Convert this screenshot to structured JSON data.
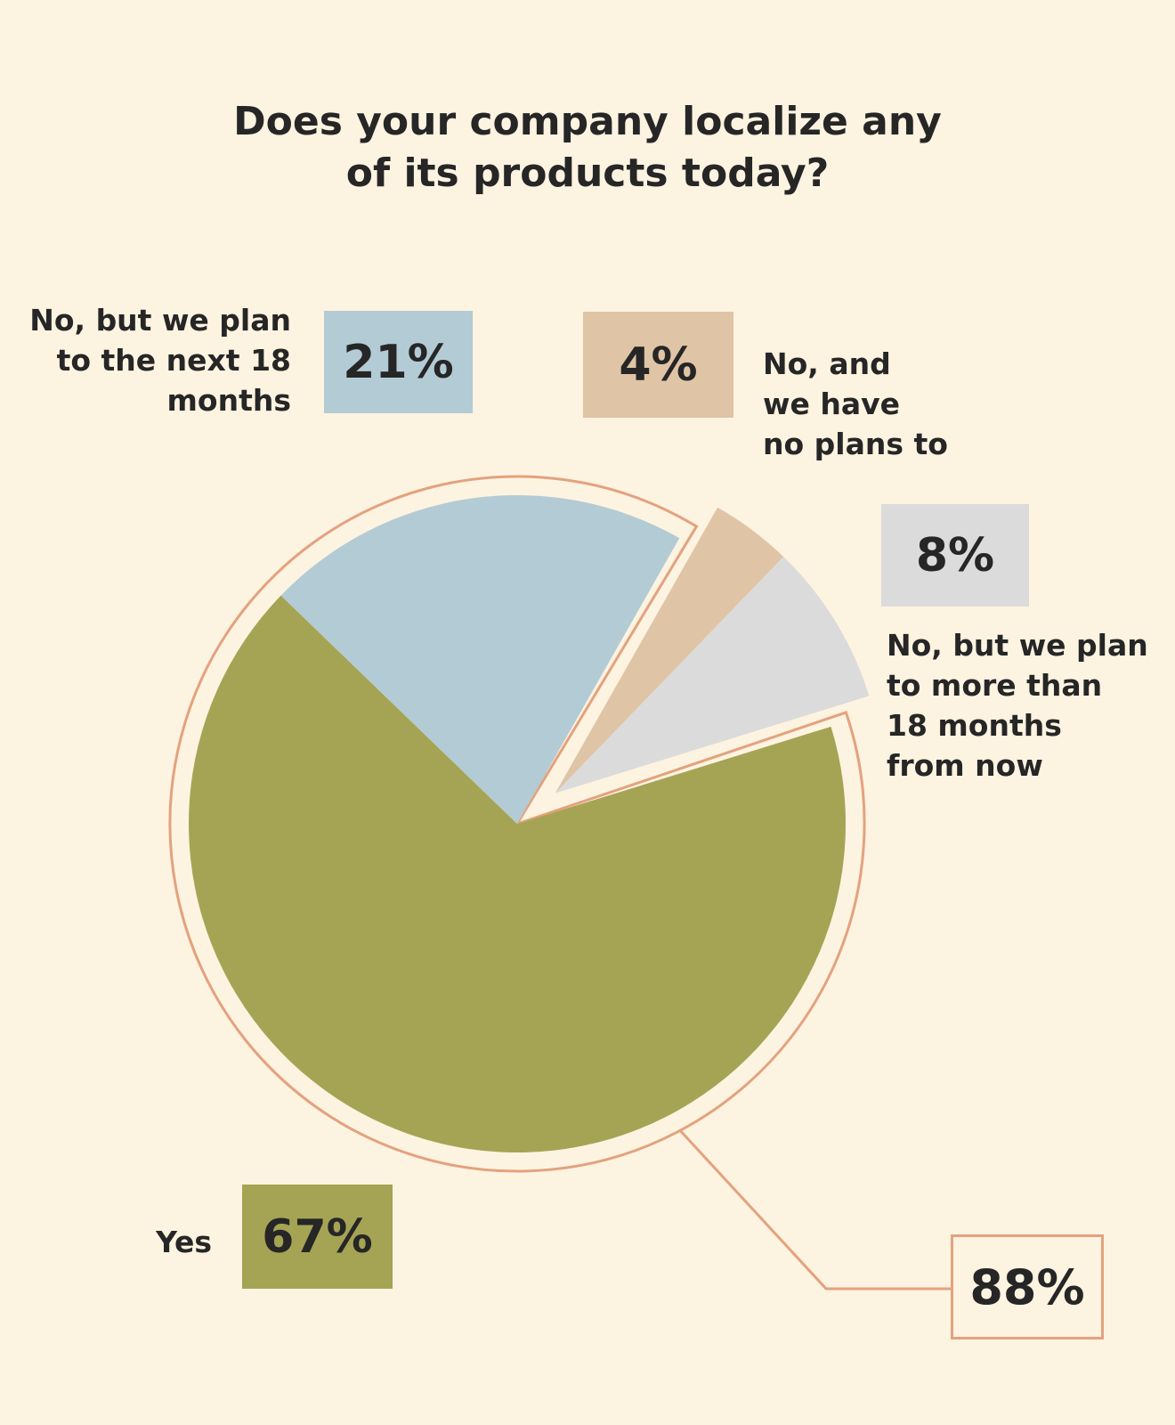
{
  "colors": {
    "background": "#fdf3e1",
    "yes": "#a5a454",
    "plan_18": "#b3cbd4",
    "no_plans": "#dfc4a6",
    "plan_more": "#dbdbdb",
    "outline": "#e3a27e"
  },
  "chart_data": {
    "type": "pie",
    "title_lines": [
      "Does your company localize any",
      "of its products today?"
    ],
    "slices": [
      {
        "label_lines": [
          "Yes"
        ],
        "value": 67,
        "value_label": "67%",
        "color_key": "yes"
      },
      {
        "label_lines": [
          "No, but we plan",
          "to the next 18",
          "months"
        ],
        "value": 21,
        "value_label": "21%",
        "color_key": "plan_18"
      },
      {
        "label_lines": [
          "No, and",
          "we have",
          "no plans to"
        ],
        "value": 4,
        "value_label": "4%",
        "color_key": "no_plans"
      },
      {
        "label_lines": [
          "No, but we plan",
          "to more than",
          "18 months",
          "from now"
        ],
        "value": 8,
        "value_label": "8%",
        "color_key": "plan_more"
      }
    ],
    "combined_group": {
      "slices": [
        "Yes",
        "No, but we plan to the next 18 months"
      ],
      "value": 88,
      "value_label": "88%"
    }
  }
}
